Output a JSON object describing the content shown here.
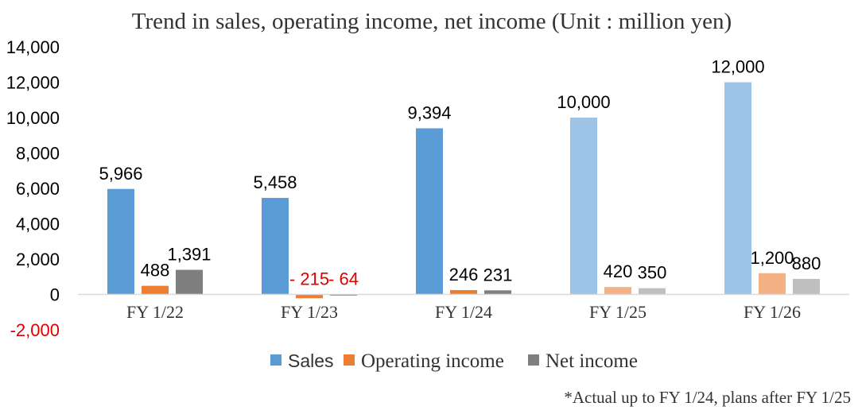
{
  "chart_data": {
    "type": "bar",
    "title": "Trend in sales, operating income, net income (Unit : million yen)",
    "categories": [
      "FY 1/22",
      "FY 1/23",
      "FY 1/24",
      "FY 1/25",
      "FY 1/26"
    ],
    "series": [
      {
        "name": "Sales",
        "values": [
          5966,
          5458,
          9394,
          10000,
          12000
        ],
        "labels": [
          "5,966",
          "5,458",
          "9,394",
          "10,000",
          "12,000"
        ],
        "color": "#5b9bd5",
        "plan_color": "#9dc3e6"
      },
      {
        "name": "Operating income",
        "values": [
          488,
          -215,
          246,
          420,
          1200
        ],
        "labels": [
          "488",
          "- 215",
          "246",
          "420",
          "1,200"
        ],
        "color": "#ed7d31",
        "plan_color": "#f4b183"
      },
      {
        "name": "Net income",
        "values": [
          1391,
          -64,
          231,
          350,
          880
        ],
        "labels": [
          "1,391",
          "- 64",
          "231",
          "350",
          "880"
        ],
        "color": "#7f7f7f",
        "plan_color": "#bfbfbf"
      }
    ],
    "plan_from_index": 3,
    "ylim": [
      -2000,
      14000
    ],
    "yticks": [
      14000,
      12000,
      10000,
      8000,
      6000,
      4000,
      2000,
      0,
      -2000
    ],
    "ytick_labels": [
      "14,000",
      "12,000",
      "10,000",
      "8,000",
      "6,000",
      "4,000",
      "2,000",
      "0",
      "-2,000"
    ],
    "negative_color": "#e00000",
    "legend_position": "bottom",
    "grid": false,
    "footnote": "*Actual up to FY 1/24, plans after FY 1/25"
  }
}
